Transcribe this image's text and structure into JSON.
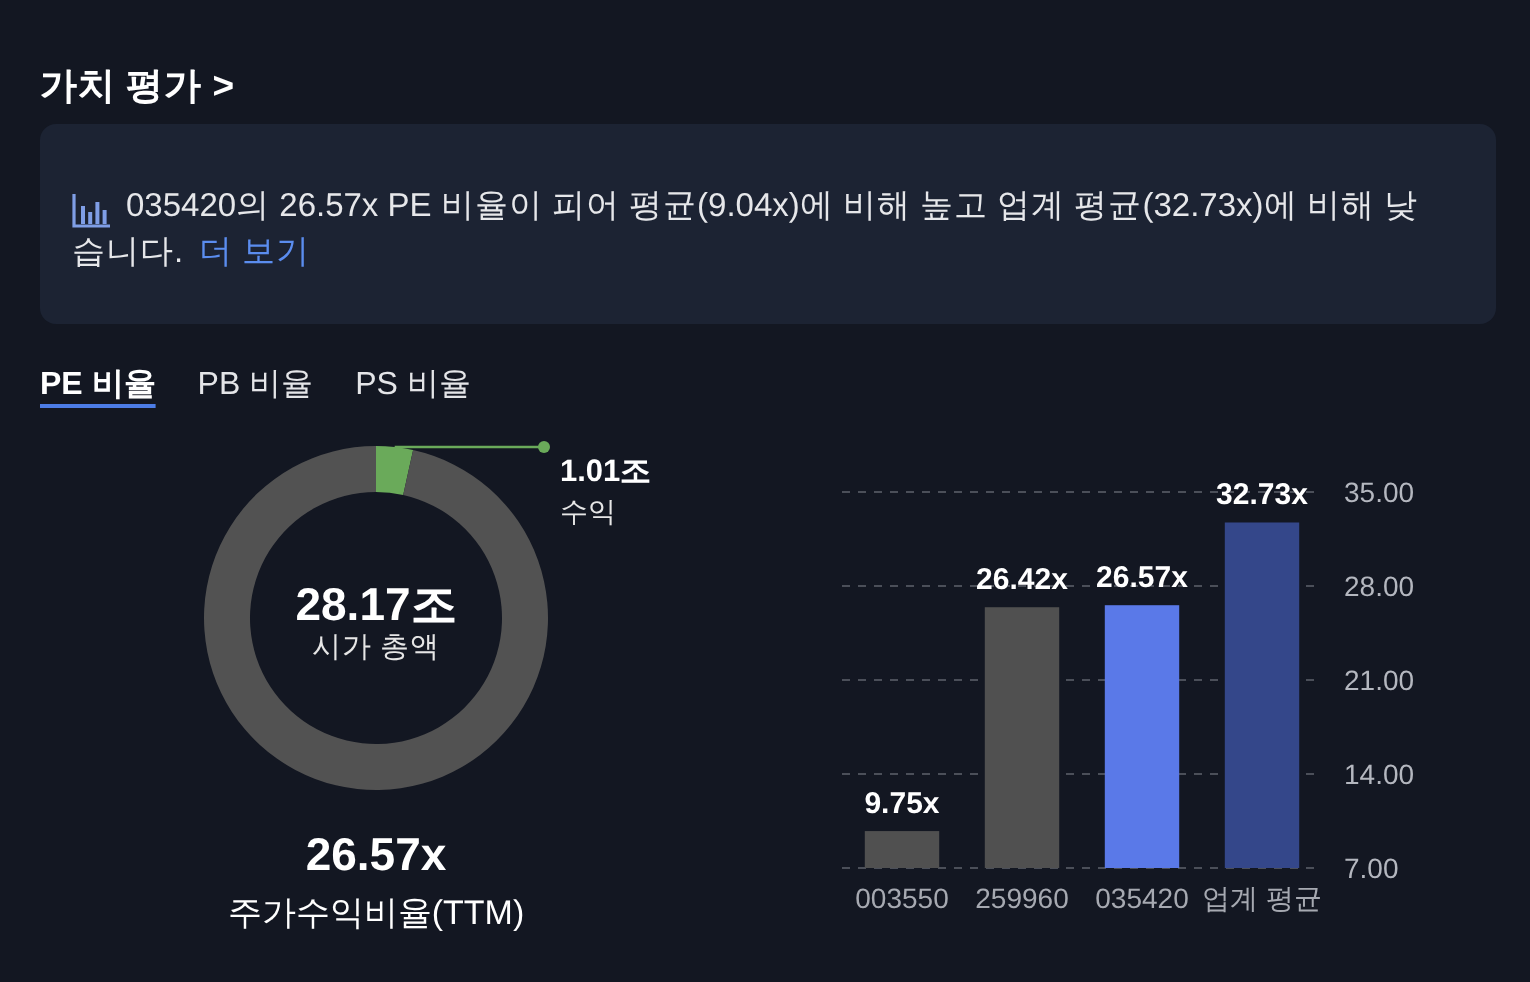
{
  "chart_data": [
    {
      "type": "other",
      "title": "가치 평가 >",
      "subtitle": "035420의 26.57x PE 비율이 피어 평균(9.04x)에 비해 높고 업계 평균(32.73x)에 비해 낮습니다.",
      "annotations": [
        "더 보기",
        "PE 비율",
        "PB 비율",
        "PS 비율"
      ]
    },
    {
      "type": "donut",
      "categories": [
        "수익",
        "시가 총액"
      ],
      "values": [
        1.01,
        28.17
      ],
      "colors": [
        "#6aaa5a",
        "#525252"
      ],
      "value_labels": [
        "1.01조",
        "28.17조"
      ],
      "annotations": [
        "26.57x",
        "주가수익비율(TTM)"
      ]
    },
    {
      "type": "bar",
      "categories": [
        "003550",
        "259960",
        "035420",
        "업계 평균"
      ],
      "values": [
        9.75,
        26.42,
        26.57,
        32.73
      ],
      "colors": [
        "#505050",
        "#505050",
        "#5a79e8",
        "#34478a"
      ],
      "value_labels": [
        "9.75x",
        "26.42x",
        "26.57x",
        "32.73x"
      ],
      "ylim": [
        7,
        35
      ],
      "yticks": [
        {
          "value": 7,
          "label": "7.00"
        },
        {
          "value": 14,
          "label": "14.00"
        },
        {
          "value": 21,
          "label": "21.00"
        },
        {
          "value": 28,
          "label": "28.00"
        },
        {
          "value": 35,
          "label": "35.00"
        }
      ],
      "grid": "y"
    }
  ]
}
